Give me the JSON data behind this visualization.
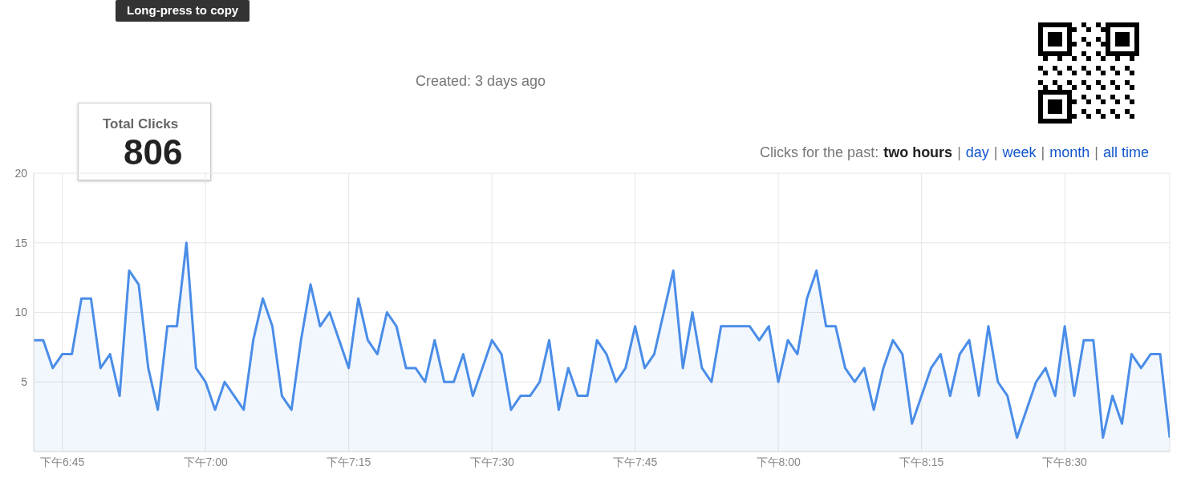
{
  "chart_data": {
    "type": "area",
    "categories": [
      null,
      null,
      null,
      "下午6:45",
      null,
      null,
      null,
      null,
      null,
      null,
      null,
      null,
      null,
      null,
      null,
      null,
      null,
      null,
      "下午7:00",
      null,
      null,
      null,
      null,
      null,
      null,
      null,
      null,
      null,
      null,
      null,
      null,
      null,
      null,
      "下午7:15",
      null,
      null,
      null,
      null,
      null,
      null,
      null,
      null,
      null,
      null,
      null,
      null,
      null,
      null,
      "下午7:30",
      null,
      null,
      null,
      null,
      null,
      null,
      null,
      null,
      null,
      null,
      null,
      null,
      null,
      null,
      "下午7:45",
      null,
      null,
      null,
      null,
      null,
      null,
      null,
      null,
      null,
      null,
      null,
      null,
      null,
      null,
      "下午8:00",
      null,
      null,
      null,
      null,
      null,
      null,
      null,
      null,
      null,
      null,
      null,
      null,
      null,
      null,
      "下午8:15",
      null,
      null,
      null,
      null,
      null,
      null,
      null,
      null,
      null,
      null,
      null,
      null,
      null,
      null,
      "下午8:30",
      null,
      null,
      null,
      null,
      null,
      null,
      null,
      null,
      null,
      null,
      null
    ],
    "series": [
      {
        "color": "#4a8de8",
        "values": [
          8,
          8,
          6,
          7,
          7,
          11,
          11,
          6,
          7,
          4,
          13,
          12,
          6,
          3,
          9,
          9,
          15,
          6,
          5,
          3,
          5,
          4,
          3,
          8,
          11,
          9,
          4,
          3,
          8,
          12,
          9,
          10,
          8,
          6,
          11,
          8,
          7,
          10,
          9,
          6,
          6,
          5,
          8,
          5,
          5,
          7,
          4,
          6,
          8,
          7,
          3,
          4,
          4,
          5,
          8,
          3,
          6,
          4,
          4,
          8,
          7,
          5,
          6,
          9,
          6,
          7,
          10,
          13,
          6,
          10,
          6,
          5,
          9,
          9,
          9,
          9,
          8,
          9,
          5,
          8,
          7,
          11,
          13,
          9,
          9,
          6,
          5,
          6,
          3,
          6,
          8,
          7,
          2,
          4,
          6,
          7,
          4,
          7,
          8,
          4,
          9,
          5,
          4,
          1,
          3,
          5,
          6,
          4,
          9,
          4,
          8,
          8,
          1,
          4,
          2,
          7,
          6,
          7,
          7,
          1
        ]
      }
    ],
    "ylim": [
      0,
      20
    ],
    "yticks": [
      5,
      10,
      15,
      20
    ],
    "grid": true,
    "annotations": [
      "Long-press to copy",
      "Created: 3 days ago",
      "Total Clicks",
      "806",
      "Clicks for the past:",
      "two hours",
      "|",
      "day",
      "|",
      "week",
      "|",
      "month",
      "|",
      "all time"
    ]
  }
}
